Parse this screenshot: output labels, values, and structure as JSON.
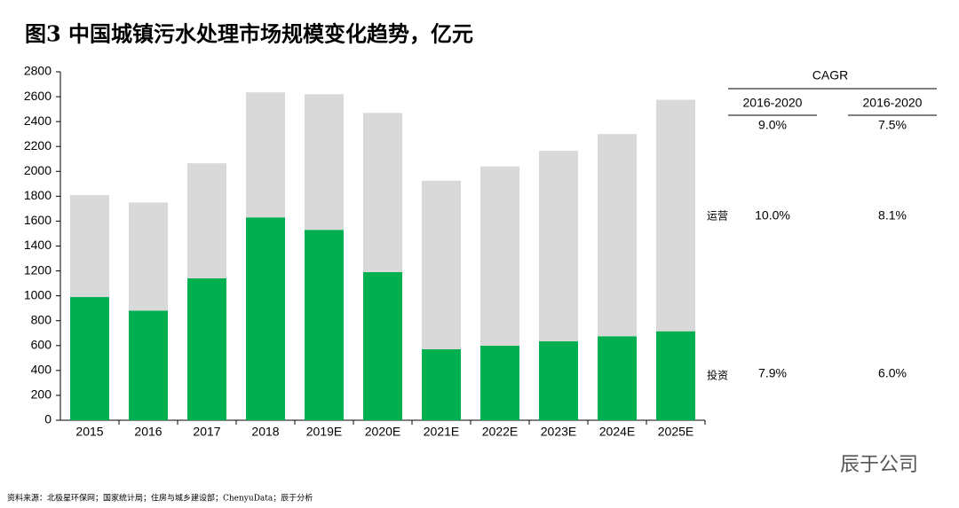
{
  "chart_data": {
    "type": "stacked_bar",
    "title": "图3 中国城镇污水处理市场规模变化趋势，亿元",
    "categories": [
      "2015",
      "2016",
      "2017",
      "2018",
      "2019E",
      "2020E",
      "2021E",
      "2022E",
      "2023E",
      "2024E",
      "2025E"
    ],
    "series": [
      {
        "name": "投资",
        "color": "#00b050",
        "values": [
          990,
          880,
          1140,
          1630,
          1530,
          1190,
          570,
          600,
          635,
          675,
          715
        ]
      },
      {
        "name": "运营",
        "color": "#d9d9d9",
        "values": [
          820,
          870,
          925,
          1005,
          1090,
          1280,
          1355,
          1440,
          1530,
          1625,
          1860
        ]
      }
    ],
    "ylim": [
      0,
      2800
    ],
    "yticks": [
      0,
      200,
      400,
      600,
      800,
      1000,
      1200,
      1400,
      1600,
      1800,
      2000,
      2200,
      2400,
      2600,
      2800
    ],
    "grid": false
  },
  "cagr_table": {
    "title": "CAGR",
    "columns": [
      "2016-2020",
      "2016-2020"
    ],
    "total_row": [
      "9.0%",
      "7.5%"
    ],
    "series_rows": [
      [
        "7.9%",
        "6.0%"
      ],
      [
        "10.0%",
        "8.1%"
      ]
    ]
  },
  "source": "资料来源：北极星环保网；国家统计局；住房与城乡建设部；ChenyuData；辰于分析",
  "watermark": "辰于公司"
}
